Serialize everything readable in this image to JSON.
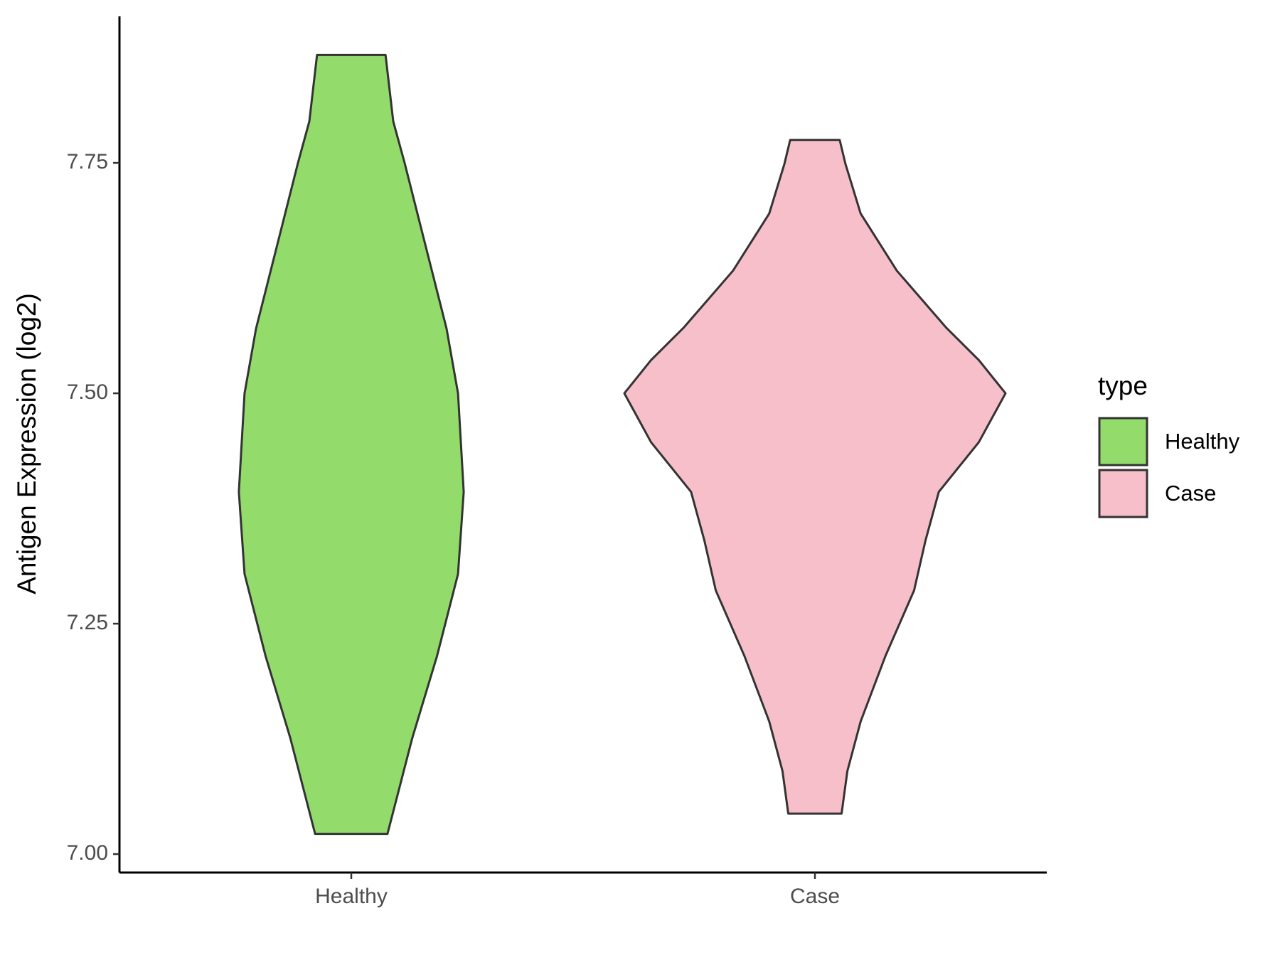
{
  "chart_data": {
    "type": "violin",
    "y_label": "Antigen Expression (log2)",
    "categories": [
      "Healthy",
      "Case"
    ],
    "legend_title": "type",
    "legend_position": "right",
    "ylim": [
      6.98,
      7.909
    ],
    "yticks": [
      {
        "value": 7,
        "label": "7.00"
      },
      {
        "value": 7.25,
        "label": "7.25"
      },
      {
        "value": 7.5,
        "label": "7.50"
      },
      {
        "value": 7.75,
        "label": "7.75"
      }
    ],
    "series": [
      {
        "name": "Healthy",
        "color": "#93dc6b",
        "y": [
          7.867,
          7.795,
          7.75,
          7.66,
          7.57,
          7.5,
          7.393,
          7.304,
          7.215,
          7.126,
          7.022
        ],
        "density": [
          0.18,
          0.22,
          0.28,
          0.39,
          0.5,
          0.56,
          0.59,
          0.56,
          0.45,
          0.32,
          0.19
        ]
      },
      {
        "name": "Case",
        "color": "#f7bfca",
        "y": [
          7.775,
          7.749,
          7.695,
          7.633,
          7.571,
          7.536,
          7.5,
          7.447,
          7.393,
          7.34,
          7.286,
          7.215,
          7.144,
          7.09,
          7.044
        ],
        "density": [
          0.13,
          0.16,
          0.24,
          0.43,
          0.69,
          0.86,
          1.0,
          0.86,
          0.65,
          0.58,
          0.52,
          0.37,
          0.24,
          0.17,
          0.14
        ]
      }
    ]
  }
}
